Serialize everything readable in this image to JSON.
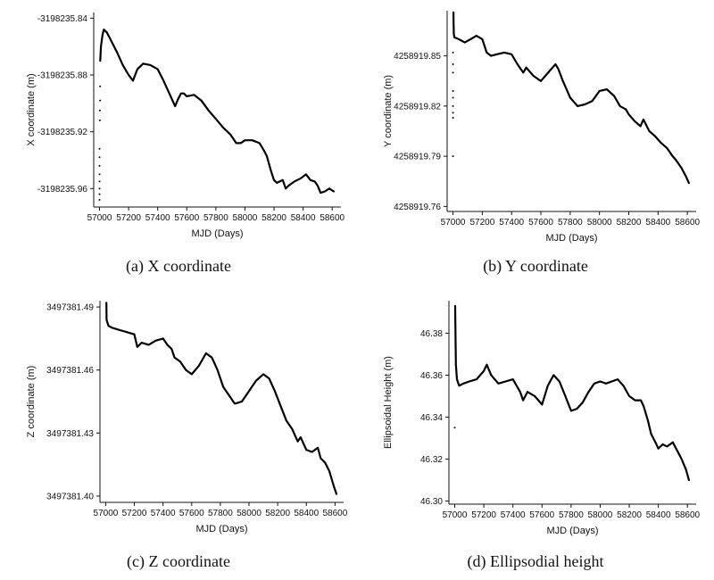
{
  "chart_data": [
    {
      "type": "line",
      "caption": "(a) X coordinate",
      "xlabel": "MJD (Days)",
      "ylabel": "X coordinate (m)",
      "xlim": [
        56960,
        58660
      ],
      "ylim": [
        -3198235.973,
        -3198235.836
      ],
      "xticks": [
        57000,
        57200,
        57400,
        57600,
        57800,
        58000,
        58200,
        58400,
        58600
      ],
      "yticks": [
        -3198235.84,
        -3198235.88,
        -3198235.92,
        -3198235.96
      ],
      "ytick_labels": [
        "-3198235.84",
        "-3198235.88",
        "-3198235.92",
        "-3198235.96"
      ],
      "outliers": {
        "x": [
          57000,
          57000,
          57000,
          57000,
          57000,
          57000,
          57000,
          57000,
          57002,
          57002,
          57004,
          57004
        ],
        "y": [
          -3198235.932,
          -3198235.938,
          -3198235.944,
          -3198235.95,
          -3198235.955,
          -3198235.96,
          -3198235.964,
          -3198235.968,
          -3198235.912,
          -3198235.905,
          -3198235.898,
          -3198235.888
        ]
      },
      "series": [
        {
          "x": [
            57005,
            57010,
            57020,
            57030,
            57050,
            57080,
            57120,
            57160,
            57200,
            57230,
            57260,
            57300,
            57350,
            57400,
            57440,
            57480,
            57520,
            57540,
            57560,
            57580,
            57600,
            57650,
            57700,
            57750,
            57800,
            57850,
            57900,
            57940,
            57970,
            58000,
            58050,
            58100,
            58130,
            58150,
            58180,
            58200,
            58220,
            58260,
            58280,
            58300,
            58340,
            58380,
            58420,
            58450,
            58480,
            58500,
            58520,
            58550,
            58580,
            58610
          ],
          "y": [
            -3198235.87,
            -3198235.86,
            -3198235.852,
            -3198235.848,
            -3198235.85,
            -3198235.856,
            -3198235.864,
            -3198235.873,
            -3198235.88,
            -3198235.884,
            -3198235.876,
            -3198235.872,
            -3198235.873,
            -3198235.876,
            -3198235.884,
            -3198235.893,
            -3198235.902,
            -3198235.897,
            -3198235.893,
            -3198235.893,
            -3198235.895,
            -3198235.894,
            -3198235.898,
            -3198235.905,
            -3198235.911,
            -3198235.917,
            -3198235.922,
            -3198235.928,
            -3198235.928,
            -3198235.926,
            -3198235.926,
            -3198235.928,
            -3198235.933,
            -3198235.937,
            -3198235.948,
            -3198235.954,
            -3198235.956,
            -3198235.954,
            -3198235.96,
            -3198235.958,
            -3198235.955,
            -3198235.953,
            -3198235.95,
            -3198235.954,
            -3198235.955,
            -3198235.958,
            -3198235.963,
            -3198235.962,
            -3198235.96,
            -3198235.962
          ]
        }
      ]
    },
    {
      "type": "line",
      "caption": "(b) Y coordinate",
      "xlabel": "MJD (Days)",
      "ylabel": "Y coordinate (m)",
      "xlim": [
        56960,
        58660
      ],
      "ylim": [
        4258919.757,
        4258919.877
      ],
      "xticks": [
        57000,
        57200,
        57400,
        57600,
        57800,
        58000,
        58200,
        58400,
        58600
      ],
      "yticks": [
        4258919.85,
        4258919.82,
        4258919.79,
        4258919.76
      ],
      "ytick_labels": [
        "4258919.85",
        "4258919.82",
        "4258919.79",
        "4258919.76"
      ],
      "outliers": {
        "x": [
          57000,
          57000,
          57000,
          57000,
          57000,
          57000,
          57000,
          57000,
          57000
        ],
        "y": [
          4258919.852,
          4258919.845,
          4258919.84,
          4258919.829,
          4258919.825,
          4258919.82,
          4258919.816,
          4258919.813,
          4258919.79
        ]
      },
      "series": [
        {
          "x": [
            57003,
            57004,
            57006,
            57010,
            57040,
            57080,
            57120,
            57160,
            57200,
            57230,
            57260,
            57300,
            57350,
            57400,
            57440,
            57480,
            57500,
            57550,
            57600,
            57650,
            57700,
            57720,
            57750,
            57800,
            57850,
            57900,
            57950,
            58000,
            58050,
            58100,
            58140,
            58180,
            58200,
            58240,
            58280,
            58300,
            58340,
            58380,
            58420,
            58460,
            58500,
            58520,
            58560,
            58590,
            58610
          ],
          "y": [
            4258919.876,
            4258919.87,
            4258919.863,
            4258919.861,
            4258919.86,
            4258919.858,
            4258919.86,
            4258919.862,
            4258919.86,
            4258919.852,
            4258919.85,
            4258919.851,
            4258919.852,
            4258919.851,
            4258919.845,
            4258919.84,
            4258919.843,
            4258919.838,
            4258919.835,
            4258919.84,
            4258919.845,
            4258919.842,
            4258919.835,
            4258919.825,
            4258919.82,
            4258919.821,
            4258919.823,
            4258919.829,
            4258919.83,
            4258919.826,
            4258919.82,
            4258919.818,
            4258919.815,
            4258919.811,
            4258919.808,
            4258919.812,
            4258919.805,
            4258919.802,
            4258919.798,
            4258919.795,
            4258919.79,
            4258919.788,
            4258919.783,
            4258919.778,
            4258919.774
          ]
        }
      ]
    },
    {
      "type": "line",
      "caption": "(c) Z coordinate",
      "xlabel": "MJD (Days)",
      "ylabel": "Z coordinate (m)",
      "xlim": [
        56960,
        58660
      ],
      "ylim": [
        4258919.757,
        4258919.877
      ],
      "xticks": [
        57000,
        57200,
        57400,
        57600,
        57800,
        58000,
        58200,
        58400,
        58600
      ],
      "yticks": [
        3497381.49,
        3497381.46,
        3497381.43,
        3497381.4
      ],
      "ytick_labels": [
        "3497381.49",
        "3497381.46",
        "3497381.43",
        "3497381.40"
      ],
      "outliers": {
        "x": [],
        "y": []
      },
      "series": [
        {
          "x": [
            57005,
            57006,
            57010,
            57020,
            57050,
            57100,
            57150,
            57200,
            57220,
            57250,
            57300,
            57350,
            57400,
            57430,
            57460,
            57480,
            57520,
            57560,
            57600,
            57650,
            57700,
            57740,
            57780,
            57820,
            57860,
            57900,
            57950,
            58000,
            58050,
            58100,
            58140,
            58180,
            58220,
            58260,
            58300,
            58340,
            58360,
            58400,
            58440,
            58480,
            58500,
            58530,
            58560,
            58590,
            58610
          ],
          "y": [
            3497381.492,
            3497381.484,
            3497381.483,
            3497381.481,
            3497381.48,
            3497381.479,
            3497381.478,
            3497381.477,
            3497381.471,
            3497381.473,
            3497381.472,
            3497381.474,
            3497381.475,
            3497381.472,
            3497381.47,
            3497381.466,
            3497381.464,
            3497381.46,
            3497381.458,
            3497381.462,
            3497381.468,
            3497381.466,
            3497381.46,
            3497381.452,
            3497381.448,
            3497381.444,
            3497381.445,
            3497381.45,
            3497381.455,
            3497381.458,
            3497381.456,
            3497381.45,
            3497381.443,
            3497381.436,
            3497381.432,
            3497381.426,
            3497381.428,
            3497381.422,
            3497381.421,
            3497381.423,
            3497381.418,
            3497381.416,
            3497381.412,
            3497381.405,
            3497381.401
          ]
        }
      ]
    },
    {
      "type": "line",
      "caption": "(d) Ellipsodial height",
      "xlabel": "MJD (Days)",
      "ylabel": "Ellipsoidal Height (m)",
      "xlim": [
        56960,
        58660
      ],
      "ylim": [
        46.2985,
        46.3955
      ],
      "xticks": [
        57000,
        57200,
        57400,
        57600,
        57800,
        58000,
        58200,
        58400,
        58600
      ],
      "yticks": [
        46.38,
        46.36,
        46.34,
        46.32,
        46.3
      ],
      "ytick_labels": [
        "46.38",
        "46.36",
        "46.34",
        "46.32",
        "46.30"
      ],
      "outliers": {
        "x": [
          57000
        ],
        "y": [
          46.335
        ]
      },
      "series": [
        {
          "x": [
            57003,
            57004,
            57006,
            57008,
            57015,
            57030,
            57060,
            57100,
            57150,
            57200,
            57220,
            57250,
            57300,
            57350,
            57400,
            57450,
            57470,
            57500,
            57550,
            57600,
            57640,
            57680,
            57720,
            57760,
            57800,
            57840,
            57880,
            57920,
            57960,
            58000,
            58040,
            58080,
            58120,
            58160,
            58200,
            58240,
            58280,
            58300,
            58330,
            58350,
            58380,
            58400,
            58430,
            58460,
            58500,
            58530,
            58560,
            58590,
            58610
          ],
          "y": [
            46.393,
            46.385,
            46.375,
            46.365,
            46.358,
            46.355,
            46.356,
            46.357,
            46.358,
            46.362,
            46.365,
            46.36,
            46.356,
            46.357,
            46.358,
            46.352,
            46.348,
            46.352,
            46.35,
            46.346,
            46.355,
            46.36,
            46.357,
            46.35,
            46.343,
            46.344,
            46.347,
            46.352,
            46.356,
            46.357,
            46.356,
            46.357,
            46.358,
            46.355,
            46.35,
            46.348,
            46.348,
            46.345,
            46.338,
            46.332,
            46.328,
            46.325,
            46.327,
            46.326,
            46.328,
            46.324,
            46.32,
            46.315,
            46.31
          ]
        }
      ]
    }
  ]
}
